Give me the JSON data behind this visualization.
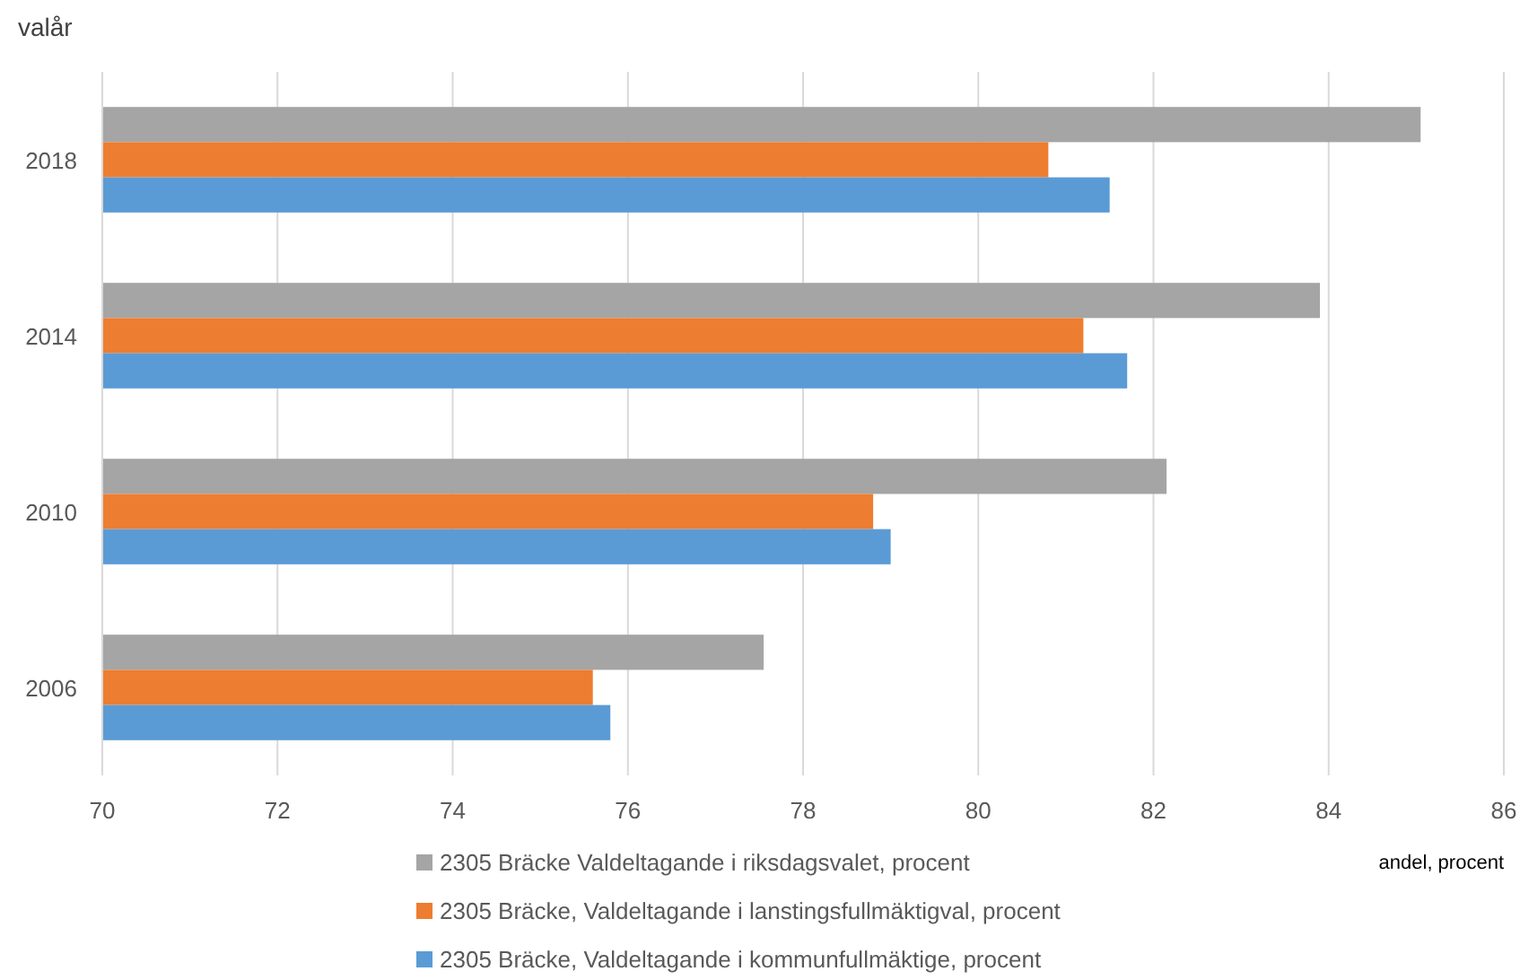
{
  "chart_data": {
    "type": "bar",
    "orientation": "horizontal",
    "ylabel": "valår",
    "xlabel": "andel, procent",
    "categories": [
      "2018",
      "2014",
      "2010",
      "2006"
    ],
    "series": [
      {
        "name": "2305 Bräcke Valdeltagande i riksdagsvalet, procent",
        "color": "#a5a5a5",
        "values": [
          85.05,
          83.9,
          82.15,
          77.55
        ]
      },
      {
        "name": "2305 Bräcke, Valdeltagande i lanstingsfullmäktigval, procent",
        "color": "#ed7d31",
        "values": [
          80.8,
          81.2,
          78.8,
          75.6
        ]
      },
      {
        "name": "2305 Bräcke, Valdeltagande i kommunfullmäktige, procent",
        "color": "#5b9bd5",
        "values": [
          81.5,
          81.7,
          79.0,
          75.8
        ]
      }
    ],
    "xlim": [
      70,
      86
    ],
    "xticks": [
      70,
      72,
      74,
      76,
      78,
      80,
      82,
      84,
      86
    ],
    "grid": "x",
    "legend": "bottom"
  }
}
